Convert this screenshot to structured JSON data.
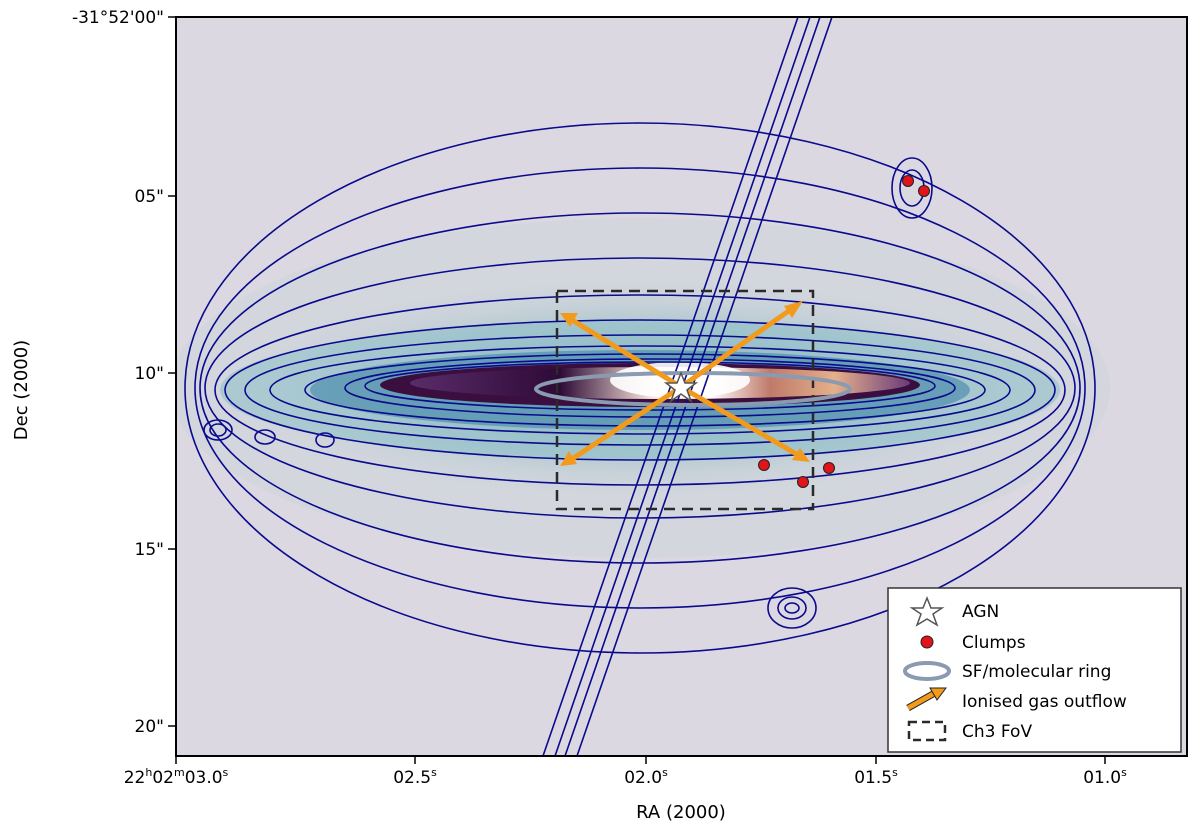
{
  "axes": {
    "xlabel": "RA (2000)",
    "ylabel": "Dec (2000)",
    "x_ticks": [
      {
        "h": "22",
        "m": "02",
        "s": "03.0",
        "pre": "22",
        "mid": "02",
        "val": "03.0",
        "sup": "s"
      },
      {
        "val": "02.5",
        "sup": "s"
      },
      {
        "val": "02.0",
        "sup": "s"
      },
      {
        "val": "01.5",
        "sup": "s"
      },
      {
        "val": "01.0",
        "sup": "s"
      }
    ],
    "first_x_tick": {
      "a": "22",
      "b": "h",
      "c": "02",
      "d": "m",
      "e": "03.0",
      "f": "s"
    },
    "y_ticks": [
      "-31°52'00\"",
      "05\"",
      "10\"",
      "15\"",
      "20\""
    ]
  },
  "legend": {
    "agn": "AGN",
    "clumps": "Clumps",
    "ring": "SF/molecular ring",
    "outflow": "Ionised gas outflow",
    "fov": "Ch3 FoV"
  },
  "colors": {
    "background_image": "#dcd8e2",
    "contour": "#0a0a8c",
    "galaxy_core": "#3a0f40",
    "galaxy_mid": "#6a3a7a",
    "outflow_arrow": "#f29a1c",
    "ring": "#8a9ab0",
    "clump": "#e0141a",
    "fov_box": "#2a2a2a"
  }
}
